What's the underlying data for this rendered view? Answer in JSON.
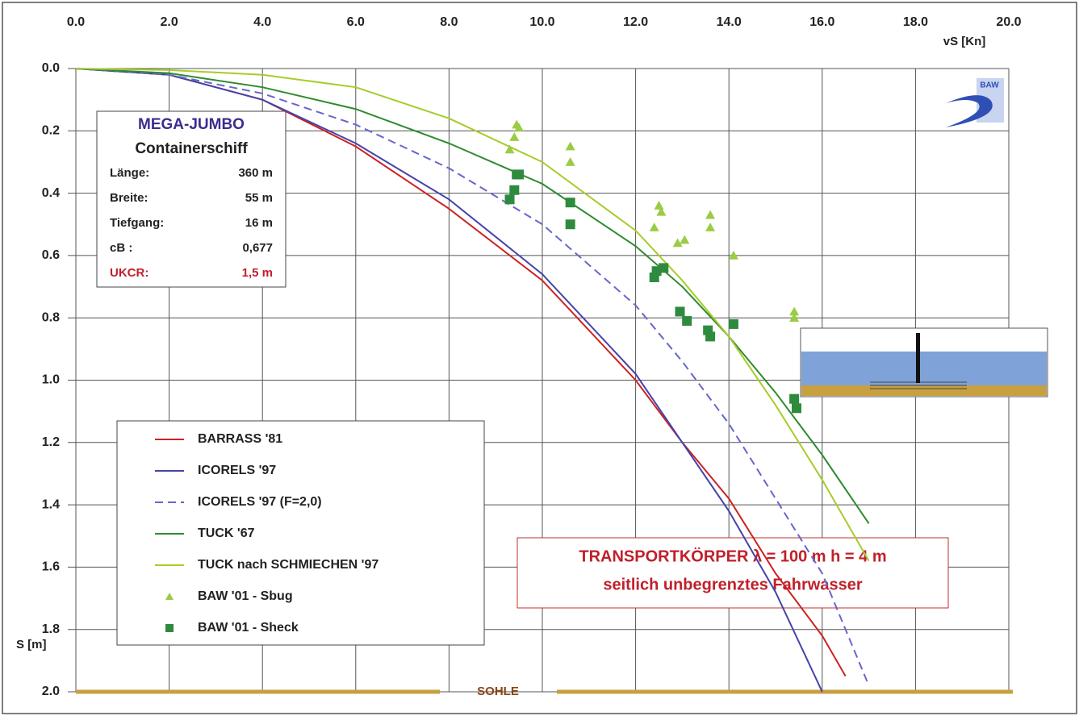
{
  "chart_data": {
    "type": "line",
    "x_label": "vS [Kn]",
    "y_label": "S [m]",
    "xlim": [
      0,
      20
    ],
    "ylim": [
      0,
      2
    ],
    "y_inverted": true,
    "x_axis_position": "top",
    "grid": true,
    "xticks": [
      {
        "value": 0,
        "label": "0.0"
      },
      {
        "value": 2,
        "label": "2.0"
      },
      {
        "value": 4,
        "label": "4.0"
      },
      {
        "value": 6,
        "label": "6.0"
      },
      {
        "value": 8,
        "label": "8.0"
      },
      {
        "value": 10,
        "label": "10.0"
      },
      {
        "value": 12,
        "label": "12.0"
      },
      {
        "value": 14,
        "label": "14.0"
      },
      {
        "value": 16,
        "label": "16.0"
      },
      {
        "value": 18,
        "label": "18.0"
      },
      {
        "value": 20,
        "label": "20.0"
      }
    ],
    "yticks": [
      {
        "value": 0,
        "label": "0.0"
      },
      {
        "value": 0.2,
        "label": "0.2"
      },
      {
        "value": 0.4,
        "label": "0.4"
      },
      {
        "value": 0.6,
        "label": "0.6"
      },
      {
        "value": 0.8,
        "label": "0.8"
      },
      {
        "value": 1,
        "label": "1.0"
      },
      {
        "value": 1.2,
        "label": "1.2"
      },
      {
        "value": 1.4,
        "label": "1.4"
      },
      {
        "value": 1.6,
        "label": "1.6"
      },
      {
        "value": 1.8,
        "label": "1.8"
      },
      {
        "value": 2,
        "label": "2.0"
      }
    ],
    "series": [
      {
        "name": "BARRASS '81",
        "color": "#cc2222",
        "style": "solid",
        "x": [
          0,
          2,
          4,
          6,
          8,
          10,
          12,
          13,
          14,
          15,
          16,
          16.5
        ],
        "values": [
          0,
          0.02,
          0.1,
          0.25,
          0.45,
          0.68,
          1.0,
          1.2,
          1.38,
          1.62,
          1.82,
          1.95
        ]
      },
      {
        "name": "ICORELS '97",
        "color": "#4444aa",
        "style": "solid",
        "x": [
          0,
          2,
          4,
          6,
          8,
          10,
          12,
          13,
          14,
          15,
          16
        ],
        "values": [
          0,
          0.02,
          0.1,
          0.24,
          0.42,
          0.66,
          0.98,
          1.2,
          1.42,
          1.68,
          2.0
        ]
      },
      {
        "name": "ICORELS '97 (F=2,0)",
        "color": "#6666cc",
        "style": "dashed",
        "x": [
          0,
          2,
          4,
          6,
          8,
          10,
          12,
          13,
          14,
          15,
          16,
          17
        ],
        "values": [
          0,
          0.02,
          0.08,
          0.18,
          0.32,
          0.5,
          0.76,
          0.94,
          1.14,
          1.38,
          1.62,
          1.98
        ]
      },
      {
        "name": "TUCK '67",
        "color": "#2e8b2e",
        "style": "solid",
        "x": [
          0,
          2,
          4,
          6,
          8,
          10,
          12,
          13,
          14,
          15,
          16,
          17
        ],
        "values": [
          0,
          0.015,
          0.06,
          0.13,
          0.24,
          0.37,
          0.57,
          0.7,
          0.86,
          1.04,
          1.24,
          1.46
        ]
      },
      {
        "name": "TUCK nach SCHMIECHEN '97",
        "color": "#a6cc2a",
        "style": "solid",
        "x": [
          0,
          2,
          4,
          6,
          8,
          10,
          12,
          13,
          14,
          15,
          16,
          17
        ],
        "values": [
          0,
          0.005,
          0.02,
          0.06,
          0.16,
          0.3,
          0.52,
          0.68,
          0.86,
          1.08,
          1.32,
          1.58
        ]
      },
      {
        "name": "BAW '01 - Sbug",
        "color": "#9acc44",
        "style": "triangle",
        "x": [
          9.3,
          9.4,
          9.45,
          9.5,
          10.6,
          10.6,
          12.4,
          12.5,
          12.55,
          12.9,
          13.05,
          13.6,
          13.6,
          14.1,
          15.4,
          15.4
        ],
        "values": [
          0.26,
          0.22,
          0.18,
          0.19,
          0.25,
          0.3,
          0.51,
          0.44,
          0.46,
          0.56,
          0.55,
          0.51,
          0.47,
          0.6,
          0.78,
          0.8
        ]
      },
      {
        "name": "BAW '01 - Sheck",
        "color": "#2e8b3e",
        "style": "square",
        "x": [
          9.3,
          9.4,
          9.45,
          9.5,
          10.6,
          10.6,
          12.4,
          12.45,
          12.6,
          12.95,
          13.1,
          13.55,
          13.6,
          14.1,
          15.4,
          15.45
        ],
        "values": [
          0.42,
          0.39,
          0.34,
          0.34,
          0.43,
          0.5,
          0.67,
          0.65,
          0.64,
          0.78,
          0.81,
          0.84,
          0.86,
          0.82,
          1.06,
          1.09
        ]
      }
    ],
    "info_box": {
      "title": "MEGA-JUMBO",
      "subtitle": "Containerschiff",
      "rows": [
        [
          "Länge:",
          "360 m"
        ],
        [
          "Breite:",
          "55 m"
        ],
        [
          "Tiefgang:",
          "16 m"
        ],
        [
          "cB :",
          "0,677"
        ],
        [
          "UKCR:",
          "1,5 m"
        ]
      ]
    },
    "annotation": [
      "TRANSPORTKÖRPER  λ = 100 m  h = 4 m",
      "seitlich unbegrenztes Fahrwasser"
    ],
    "bottom_label": "SOHLE",
    "logo": "BAW"
  }
}
